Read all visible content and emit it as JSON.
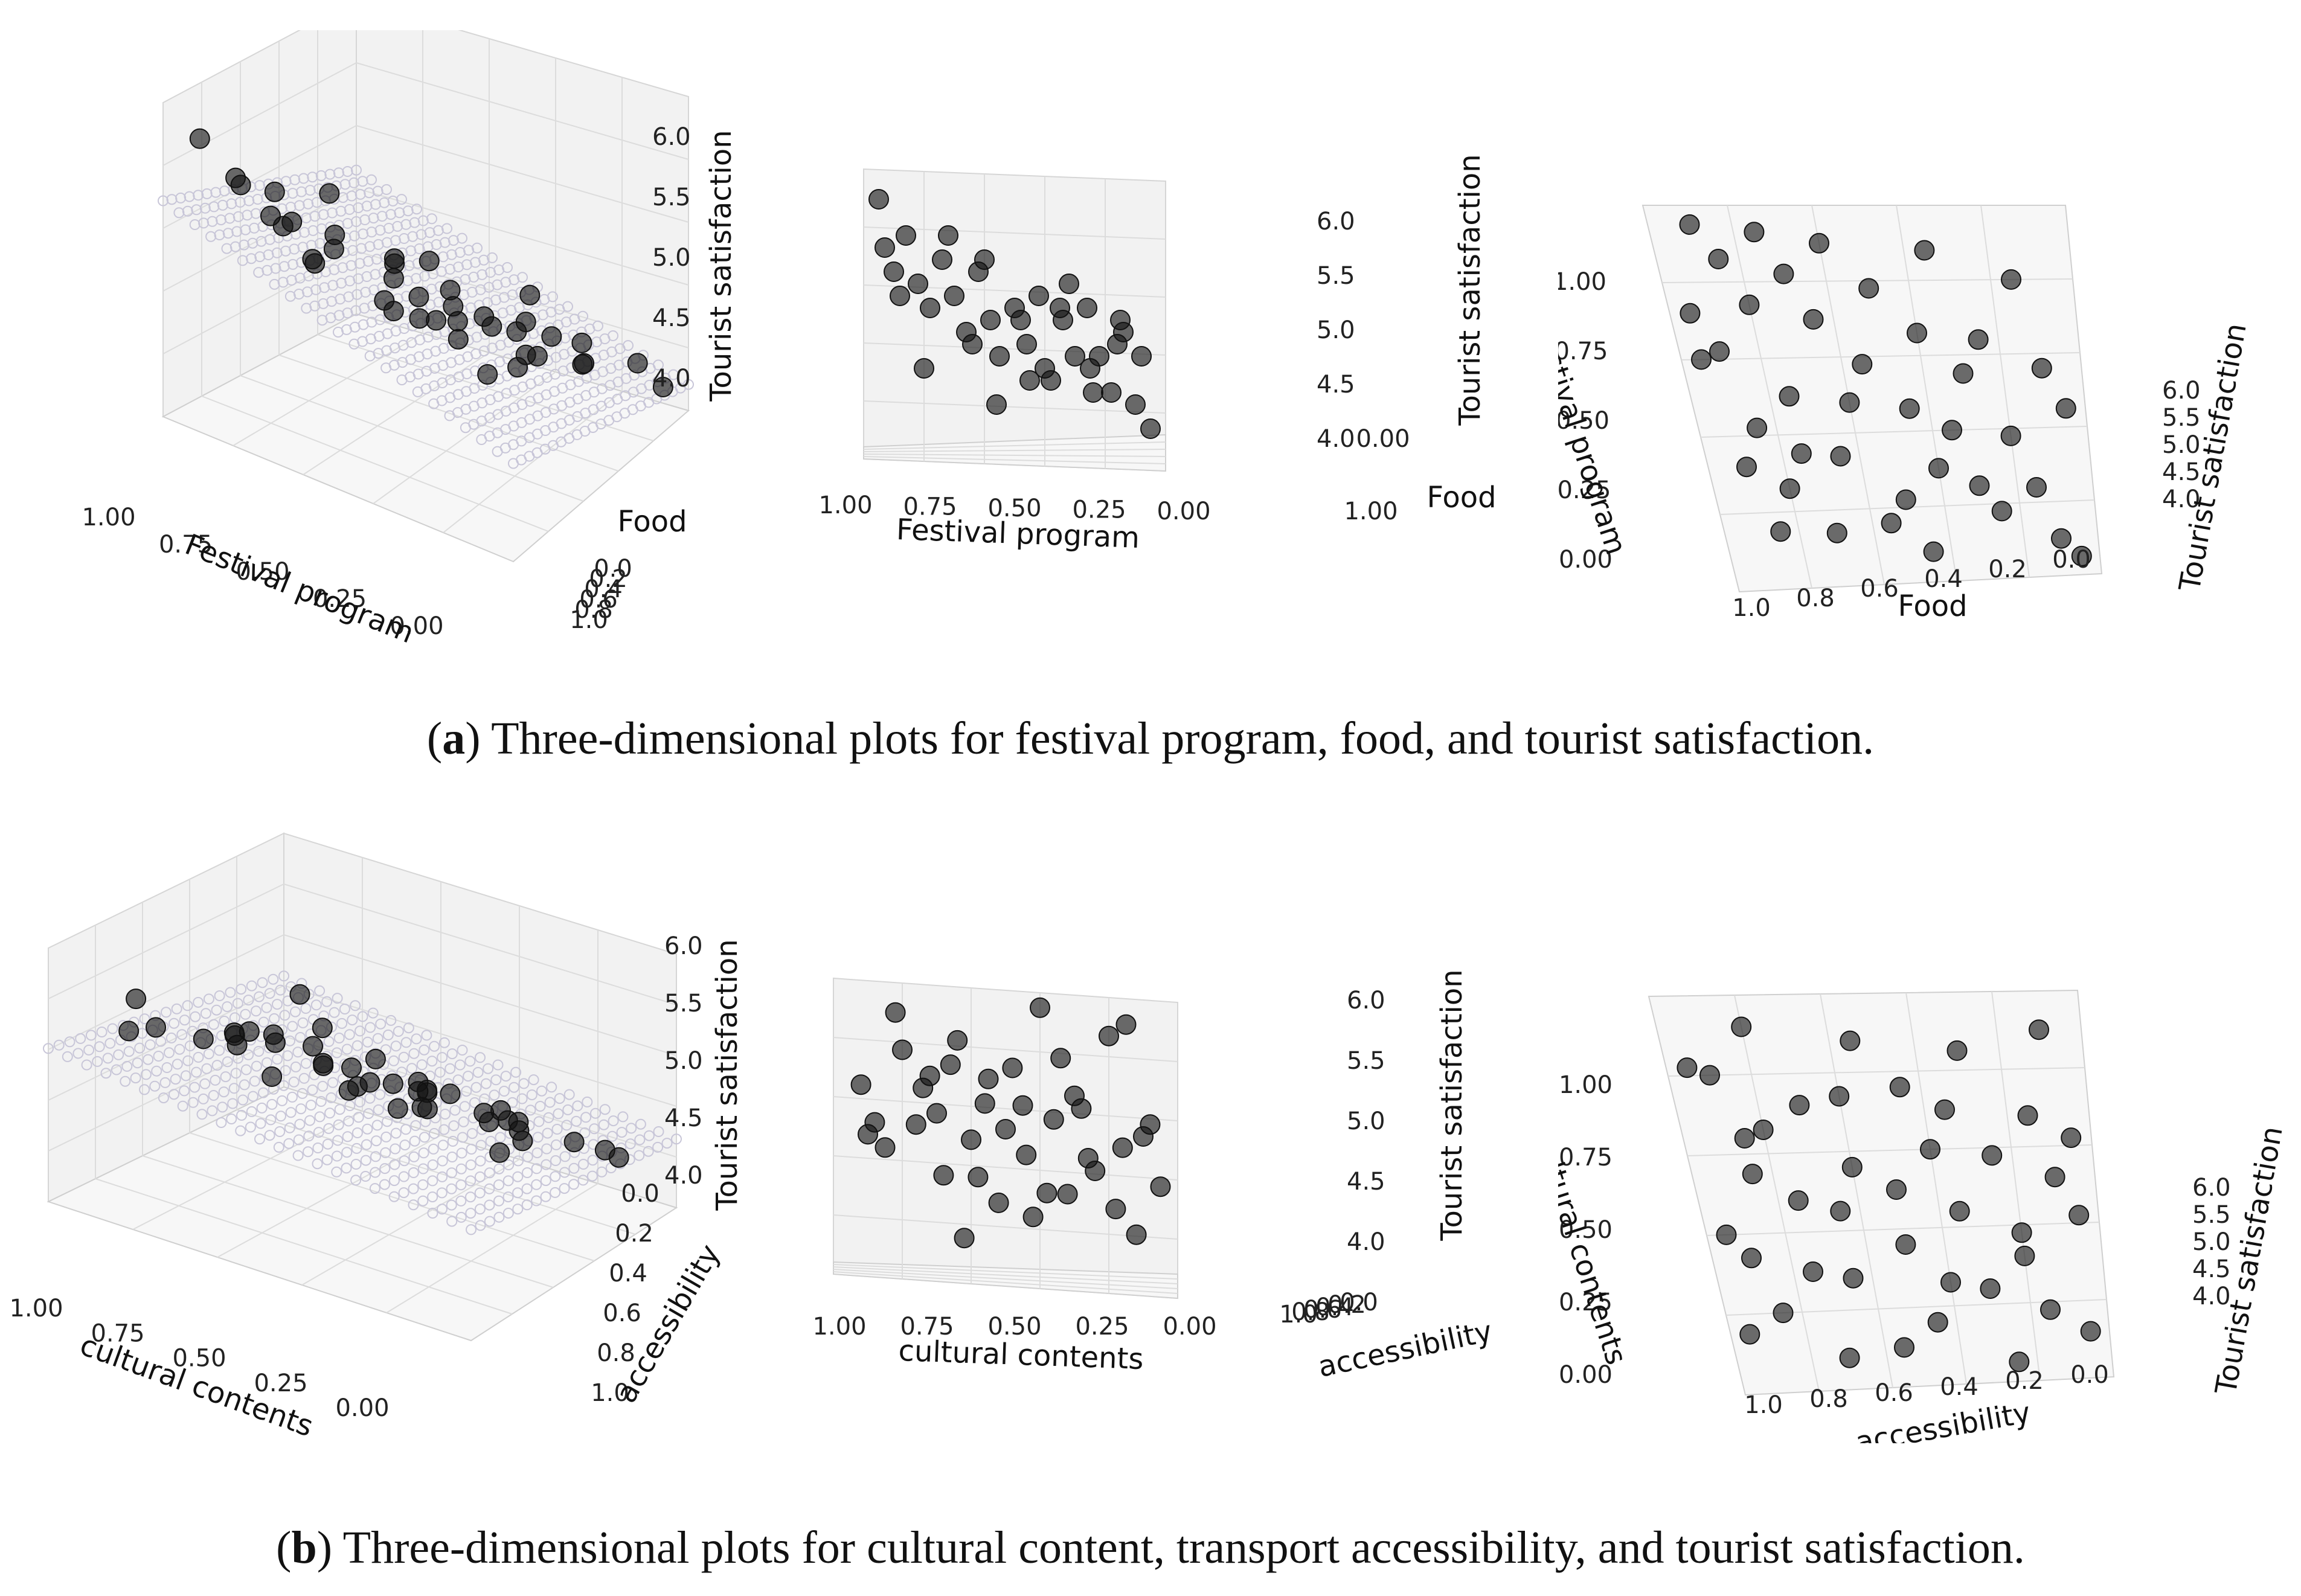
{
  "captions": {
    "a": {
      "letter": "a",
      "text": "Three-dimensional plots for festival program, food, and tourist satisfaction."
    },
    "b": {
      "letter": "b",
      "text": "Three-dimensional plots for cultural content, transport accessibility, and tourist satisfaction."
    }
  },
  "chart_data": [
    {
      "type": "scatter",
      "projection": "3d",
      "view": "perspective",
      "xlabel": "Festival program",
      "ylabel": "Food",
      "zlabel": "Tourist satisfaction",
      "xticks": [
        "1.00",
        "0.75",
        "0.50",
        "0.25",
        "0.00"
      ],
      "yticks": [
        "0.0",
        "0.2",
        "0.4",
        "0.6",
        "0.8",
        "1.0"
      ],
      "zticks": [
        "4.0",
        "4.5",
        "5.0",
        "5.5",
        "6.0"
      ],
      "xlim": [
        0,
        1
      ],
      "ylim": [
        0,
        1
      ],
      "zlim": [
        3.8,
        6.2
      ],
      "plane": {
        "intercept": 4.55,
        "slope_x": 0.9,
        "slope_y": -0.55
      },
      "points_x": [
        0.95,
        0.93,
        0.9,
        0.86,
        0.82,
        0.78,
        0.74,
        0.7,
        0.66,
        0.62,
        0.58,
        0.55,
        0.5,
        0.46,
        0.42,
        0.38,
        0.34,
        0.3,
        0.26,
        0.22,
        0.18,
        0.14,
        0.1,
        0.05,
        0.88,
        0.8,
        0.72,
        0.64,
        0.56,
        0.48,
        0.4,
        0.32,
        0.24,
        0.16,
        0.08,
        0.6,
        0.45,
        0.35,
        0.25,
        0.15
      ],
      "points_y": [
        0.1,
        0.25,
        0.4,
        0.15,
        0.3,
        0.5,
        0.2,
        0.35,
        0.6,
        0.1,
        0.45,
        0.7,
        0.25,
        0.55,
        0.15,
        0.8,
        0.35,
        0.6,
        0.2,
        0.5,
        0.75,
        0.3,
        0.9,
        0.95,
        0.65,
        0.85,
        0.05,
        0.75,
        0.9,
        0.4,
        0.65,
        0.1,
        0.85,
        0.45,
        0.55,
        0.05,
        0.95,
        0.25,
        0.7,
        0.15
      ],
      "points_z": [
        5.9,
        5.5,
        5.3,
        5.6,
        5.2,
        5.0,
        5.4,
        5.1,
        4.8,
        5.3,
        4.9,
        4.6,
        5.0,
        4.7,
        5.1,
        4.4,
        4.9,
        4.6,
        5.0,
        4.6,
        4.3,
        4.8,
        4.2,
        4.0,
        5.1,
        4.5,
        5.6,
        4.7,
        4.2,
        4.9,
        4.5,
        5.2,
        4.3,
        4.7,
        4.6,
        5.4,
        4.4,
        5.0,
        4.5,
        4.9
      ]
    },
    {
      "type": "scatter",
      "projection": "3d",
      "view": "side (Festival program / Tourist satisfaction)",
      "xlabel": "Festival program",
      "ylabel": "Food",
      "zlabel": "Tourist satisfaction",
      "xticks": [
        "1.00",
        "0.75",
        "0.50",
        "0.25",
        "0.00"
      ],
      "yticks": [
        "0.00",
        "1.00"
      ],
      "zticks": [
        "4.0",
        "4.5",
        "5.0",
        "5.5",
        "6.0"
      ],
      "xlim": [
        0,
        1
      ],
      "zlim": [
        3.8,
        6.2
      ],
      "points_x": [
        0.95,
        0.93,
        0.9,
        0.86,
        0.82,
        0.78,
        0.74,
        0.7,
        0.66,
        0.62,
        0.58,
        0.55,
        0.5,
        0.46,
        0.42,
        0.38,
        0.34,
        0.3,
        0.26,
        0.22,
        0.18,
        0.14,
        0.1,
        0.05,
        0.88,
        0.8,
        0.72,
        0.64,
        0.56,
        0.48,
        0.4,
        0.32,
        0.24,
        0.16,
        0.08,
        0.6,
        0.45,
        0.35,
        0.25,
        0.15
      ],
      "points_z": [
        5.9,
        5.5,
        5.3,
        5.6,
        5.2,
        5.0,
        5.4,
        5.1,
        4.8,
        5.3,
        4.9,
        4.6,
        5.0,
        4.7,
        5.1,
        4.4,
        4.9,
        4.6,
        5.0,
        4.6,
        4.3,
        4.8,
        4.2,
        4.0,
        5.1,
        4.5,
        5.6,
        4.7,
        4.2,
        4.9,
        4.5,
        5.2,
        4.3,
        4.7,
        4.6,
        5.4,
        4.4,
        5.0,
        4.5,
        4.9
      ]
    },
    {
      "type": "scatter",
      "projection": "3d",
      "view": "top-down (Festival program / Food)",
      "xlabel": "Festival program",
      "ylabel": "Food",
      "zlabel": "Tourist satisfaction",
      "xticks": [
        "0.00",
        "0.25",
        "0.50",
        "0.75",
        "1.00"
      ],
      "yticks": [
        "1.0",
        "0.8",
        "0.6",
        "0.4",
        "0.2",
        "0.0"
      ],
      "zticks": [
        "4.0",
        "4.5",
        "5.0",
        "5.5",
        "6.0"
      ],
      "xlim": [
        0,
        1
      ],
      "ylim": [
        0,
        1
      ],
      "zlim": [
        3.8,
        6.2
      ],
      "points_x": [
        0.95,
        0.93,
        0.9,
        0.86,
        0.82,
        0.78,
        0.74,
        0.7,
        0.66,
        0.62,
        0.58,
        0.55,
        0.5,
        0.46,
        0.42,
        0.38,
        0.34,
        0.3,
        0.26,
        0.22,
        0.18,
        0.14,
        0.1,
        0.05,
        0.88,
        0.8,
        0.72,
        0.64,
        0.56,
        0.48,
        0.4,
        0.32,
        0.24,
        0.16,
        0.08,
        0.6,
        0.45,
        0.35,
        0.25,
        0.15
      ],
      "points_y": [
        0.1,
        0.25,
        0.4,
        0.15,
        0.3,
        0.5,
        0.2,
        0.35,
        0.6,
        0.1,
        0.45,
        0.7,
        0.25,
        0.55,
        0.15,
        0.8,
        0.35,
        0.6,
        0.2,
        0.5,
        0.75,
        0.3,
        0.9,
        0.95,
        0.65,
        0.85,
        0.05,
        0.75,
        0.9,
        0.4,
        0.65,
        0.1,
        0.85,
        0.45,
        0.55,
        0.05,
        0.95,
        0.25,
        0.7,
        0.15
      ]
    },
    {
      "type": "scatter",
      "projection": "3d",
      "view": "perspective",
      "xlabel": "cultural contents",
      "ylabel": "accessibility",
      "zlabel": "Tourist satisfaction",
      "xticks": [
        "1.00",
        "0.75",
        "0.50",
        "0.25",
        "0.00"
      ],
      "yticks": [
        "0.0",
        "0.2",
        "0.4",
        "0.6",
        "0.8",
        "1.0"
      ],
      "zticks": [
        "4.0",
        "4.5",
        "5.0",
        "5.5",
        "6.0"
      ],
      "xlim": [
        0,
        1
      ],
      "ylim": [
        0,
        1
      ],
      "zlim": [
        3.8,
        6.2
      ],
      "plane": {
        "intercept": 4.85,
        "slope_x": 0.4,
        "slope_y": -0.4
      },
      "points_x": [
        0.92,
        0.88,
        0.85,
        0.8,
        0.76,
        0.72,
        0.68,
        0.64,
        0.6,
        0.56,
        0.52,
        0.48,
        0.44,
        0.4,
        0.36,
        0.32,
        0.28,
        0.24,
        0.2,
        0.16,
        0.12,
        0.08,
        0.05,
        0.9,
        0.82,
        0.74,
        0.66,
        0.58,
        0.5,
        0.42,
        0.34,
        0.26,
        0.18,
        0.1,
        0.7,
        0.55,
        0.45,
        0.3,
        0.15,
        0.62,
        0.38
      ],
      "points_y": [
        0.2,
        0.45,
        0.7,
        0.1,
        0.55,
        0.3,
        0.85,
        0.15,
        0.6,
        0.4,
        0.9,
        0.25,
        0.65,
        0.05,
        0.5,
        0.8,
        0.35,
        0.7,
        0.15,
        0.55,
        0.95,
        0.3,
        0.75,
        0.9,
        0.05,
        0.4,
        0.2,
        0.75,
        0.5,
        0.95,
        0.1,
        0.6,
        0.85,
        0.45,
        0.65,
        0.15,
        0.35,
        0.25,
        0.05,
        0.95,
        0.8
      ],
      "points_z": [
        5.3,
        5.0,
        4.8,
        5.6,
        5.0,
        5.4,
        4.6,
        5.7,
        4.9,
        5.2,
        4.4,
        5.5,
        4.8,
        6.0,
        5.1,
        4.5,
        5.2,
        4.7,
        5.8,
        4.9,
        4.2,
        5.1,
        4.6,
        4.9,
        5.9,
        5.3,
        5.5,
        4.6,
        5.0,
        4.3,
        5.6,
        4.8,
        4.4,
        5.0,
        5.1,
        5.4,
        5.2,
        5.3,
        5.9,
        4.1,
        4.5
      ]
    },
    {
      "type": "scatter",
      "projection": "3d",
      "view": "side (cultural contents / Tourist satisfaction)",
      "xlabel": "cultural contents",
      "ylabel": "accessibility",
      "zlabel": "Tourist satisfaction",
      "xticks": [
        "1.00",
        "0.75",
        "0.50",
        "0.25",
        "0.00"
      ],
      "yticks": [
        "1.0",
        "0.8",
        "0.6",
        "0.4",
        "0.2",
        "0.0"
      ],
      "zticks": [
        "4.0",
        "4.5",
        "5.0",
        "5.5",
        "6.0"
      ],
      "xlim": [
        0,
        1
      ],
      "zlim": [
        3.8,
        6.2
      ],
      "points_x": [
        0.92,
        0.88,
        0.85,
        0.8,
        0.76,
        0.72,
        0.68,
        0.64,
        0.6,
        0.56,
        0.52,
        0.48,
        0.44,
        0.4,
        0.36,
        0.32,
        0.28,
        0.24,
        0.2,
        0.16,
        0.12,
        0.08,
        0.05,
        0.9,
        0.82,
        0.74,
        0.66,
        0.58,
        0.5,
        0.42,
        0.34,
        0.26,
        0.18,
        0.1,
        0.7,
        0.55,
        0.45,
        0.3,
        0.15,
        0.62,
        0.38
      ],
      "points_z": [
        5.3,
        5.0,
        4.8,
        5.6,
        5.0,
        5.4,
        4.6,
        5.7,
        4.9,
        5.2,
        4.4,
        5.5,
        4.8,
        6.0,
        5.1,
        4.5,
        5.2,
        4.7,
        5.8,
        4.9,
        4.2,
        5.1,
        4.6,
        4.9,
        5.9,
        5.3,
        5.5,
        4.6,
        5.0,
        4.3,
        5.6,
        4.8,
        4.4,
        5.0,
        5.1,
        5.4,
        5.2,
        5.3,
        5.9,
        4.1,
        4.5
      ]
    },
    {
      "type": "scatter",
      "projection": "3d",
      "view": "top-down (cultural contents / accessibility)",
      "xlabel": "cultural contents",
      "ylabel": "accessibility",
      "zlabel": "Tourist satisfaction",
      "xticks": [
        "0.00",
        "0.25",
        "0.50",
        "0.75",
        "1.00"
      ],
      "yticks": [
        "1.0",
        "0.8",
        "0.6",
        "0.4",
        "0.2",
        "0.0"
      ],
      "zticks": [
        "4.0",
        "4.5",
        "5.0",
        "5.5",
        "6.0"
      ],
      "xlim": [
        0,
        1
      ],
      "ylim": [
        0,
        1
      ],
      "zlim": [
        3.8,
        6.2
      ],
      "points_x": [
        0.92,
        0.88,
        0.85,
        0.8,
        0.76,
        0.72,
        0.68,
        0.64,
        0.6,
        0.56,
        0.52,
        0.48,
        0.44,
        0.4,
        0.36,
        0.32,
        0.28,
        0.24,
        0.2,
        0.16,
        0.12,
        0.08,
        0.05,
        0.9,
        0.82,
        0.74,
        0.66,
        0.58,
        0.5,
        0.42,
        0.34,
        0.26,
        0.18,
        0.1,
        0.7,
        0.55,
        0.45,
        0.3,
        0.15,
        0.62,
        0.38
      ],
      "points_y": [
        0.2,
        0.45,
        0.7,
        0.1,
        0.55,
        0.3,
        0.85,
        0.15,
        0.6,
        0.4,
        0.9,
        0.25,
        0.65,
        0.05,
        0.5,
        0.8,
        0.35,
        0.7,
        0.15,
        0.55,
        0.95,
        0.3,
        0.75,
        0.9,
        0.05,
        0.4,
        0.2,
        0.75,
        0.5,
        0.95,
        0.1,
        0.6,
        0.85,
        0.45,
        0.65,
        0.15,
        0.35,
        0.25,
        0.05,
        0.95,
        0.8
      ]
    }
  ]
}
